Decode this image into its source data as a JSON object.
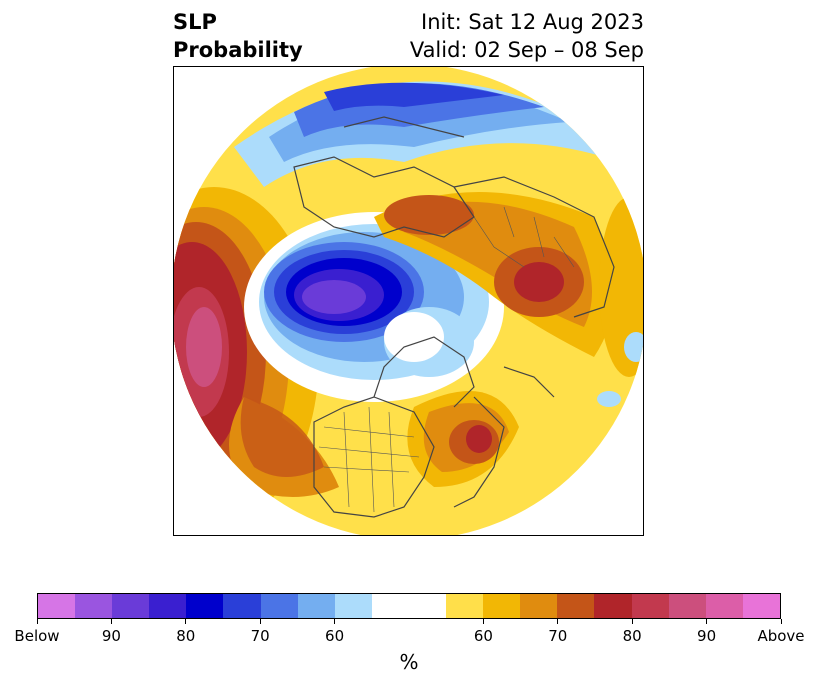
{
  "title": {
    "left_line1": "SLP",
    "left_line2": "Probability",
    "right_line1": "Init: Sat 12 Aug 2023",
    "right_line2": "Valid: 02 Sep – 08 Sep"
  },
  "colorbar": {
    "colors": [
      "#d675e6",
      "#9a55e0",
      "#6a3bd8",
      "#3a1fd0",
      "#0000cc",
      "#2a3fd8",
      "#4b74e6",
      "#74aef0",
      "#acdcfb",
      "#ffffff",
      "#ffffff",
      "#ffdf4a",
      "#f2b705",
      "#e08c0f",
      "#c45518",
      "#b0252a",
      "#c2394e",
      "#cc4f7d",
      "#dc5ea8",
      "#e873d8"
    ],
    "tick_labels": [
      "Below",
      "90",
      "80",
      "70",
      "60",
      "60",
      "70",
      "80",
      "90",
      "Above"
    ],
    "unit": "%"
  },
  "map": {
    "projection": "north-polar-stereographic",
    "field": "sea-level pressure tercile probability",
    "features": [
      "coastlines",
      "country-borders",
      "us-state-borders"
    ]
  }
}
